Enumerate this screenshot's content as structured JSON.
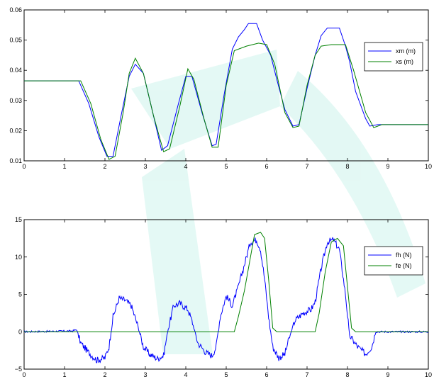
{
  "chart_data": [
    {
      "type": "line",
      "title": "",
      "xlabel": "",
      "ylabel": "",
      "xlim": [
        0,
        10
      ],
      "ylim": [
        0.01,
        0.06
      ],
      "x_ticks": [
        "0",
        "1",
        "2",
        "3",
        "4",
        "5",
        "6",
        "7",
        "8",
        "9",
        "10"
      ],
      "y_ticks": [
        "0.01",
        "0.02",
        "0.03",
        "0.04",
        "0.05",
        "0.06"
      ],
      "legend_position": "right",
      "series": [
        {
          "name": "xm (m)",
          "color": "#0000ff",
          "points": [
            [
              0,
              0.0365
            ],
            [
              1.35,
              0.0365
            ],
            [
              1.6,
              0.029
            ],
            [
              1.85,
              0.018
            ],
            [
              2.05,
              0.0115
            ],
            [
              2.2,
              0.0115
            ],
            [
              2.4,
              0.025
            ],
            [
              2.6,
              0.038
            ],
            [
              2.75,
              0.042
            ],
            [
              2.95,
              0.039
            ],
            [
              3.2,
              0.025
            ],
            [
              3.4,
              0.0135
            ],
            [
              3.55,
              0.015
            ],
            [
              3.8,
              0.028
            ],
            [
              4.0,
              0.038
            ],
            [
              4.15,
              0.038
            ],
            [
              4.4,
              0.026
            ],
            [
              4.65,
              0.015
            ],
            [
              4.75,
              0.0155
            ],
            [
              4.95,
              0.032
            ],
            [
              5.15,
              0.047
            ],
            [
              5.3,
              0.051
            ],
            [
              5.45,
              0.0535
            ],
            [
              5.55,
              0.0555
            ],
            [
              5.75,
              0.0555
            ],
            [
              5.9,
              0.05
            ],
            [
              6.1,
              0.045
            ],
            [
              6.25,
              0.037
            ],
            [
              6.45,
              0.027
            ],
            [
              6.65,
              0.0215
            ],
            [
              6.8,
              0.022
            ],
            [
              7.0,
              0.034
            ],
            [
              7.2,
              0.045
            ],
            [
              7.35,
              0.0515
            ],
            [
              7.5,
              0.054
            ],
            [
              7.8,
              0.054
            ],
            [
              7.95,
              0.048
            ],
            [
              8.05,
              0.043
            ],
            [
              8.2,
              0.033
            ],
            [
              8.45,
              0.024
            ],
            [
              8.55,
              0.0215
            ],
            [
              8.75,
              0.022
            ],
            [
              10,
              0.022
            ]
          ]
        },
        {
          "name": "xs (m)",
          "color": "#008000",
          "points": [
            [
              0,
              0.0365
            ],
            [
              1.4,
              0.0365
            ],
            [
              1.65,
              0.029
            ],
            [
              1.9,
              0.017
            ],
            [
              2.1,
              0.0105
            ],
            [
              2.25,
              0.0115
            ],
            [
              2.45,
              0.026
            ],
            [
              2.6,
              0.039
            ],
            [
              2.75,
              0.044
            ],
            [
              2.95,
              0.039
            ],
            [
              3.2,
              0.025
            ],
            [
              3.45,
              0.013
            ],
            [
              3.6,
              0.014
            ],
            [
              3.85,
              0.028
            ],
            [
              4.05,
              0.0405
            ],
            [
              4.2,
              0.037
            ],
            [
              4.45,
              0.024
            ],
            [
              4.65,
              0.0145
            ],
            [
              4.8,
              0.0145
            ],
            [
              5.0,
              0.035
            ],
            [
              5.2,
              0.0465
            ],
            [
              5.5,
              0.048
            ],
            [
              5.8,
              0.049
            ],
            [
              6.0,
              0.0485
            ],
            [
              6.2,
              0.042
            ],
            [
              6.45,
              0.026
            ],
            [
              6.65,
              0.021
            ],
            [
              6.8,
              0.0215
            ],
            [
              7.0,
              0.035
            ],
            [
              7.2,
              0.045
            ],
            [
              7.35,
              0.048
            ],
            [
              7.6,
              0.0485
            ],
            [
              7.95,
              0.0485
            ],
            [
              8.15,
              0.04
            ],
            [
              8.45,
              0.026
            ],
            [
              8.65,
              0.021
            ],
            [
              8.85,
              0.022
            ],
            [
              10,
              0.022
            ]
          ]
        }
      ]
    },
    {
      "type": "line",
      "title": "",
      "xlabel": "",
      "ylabel": "",
      "xlim": [
        0,
        10
      ],
      "ylim": [
        -5,
        15
      ],
      "x_ticks": [
        "0",
        "1",
        "2",
        "3",
        "4",
        "5",
        "6",
        "7",
        "8",
        "9",
        "10"
      ],
      "y_ticks": [
        "−5",
        "0",
        "5",
        "10",
        "15"
      ],
      "legend_position": "right",
      "series": [
        {
          "name": "fh (N)",
          "color": "#0000ff",
          "noisy": true,
          "points": [
            [
              0,
              0
            ],
            [
              1.2,
              0.1
            ],
            [
              1.3,
              0.3
            ],
            [
              1.4,
              -1.5
            ],
            [
              1.6,
              -2.8
            ],
            [
              1.8,
              -3.8
            ],
            [
              2.0,
              -3.5
            ],
            [
              2.1,
              -2.0
            ],
            [
              2.2,
              2.0
            ],
            [
              2.35,
              4.5
            ],
            [
              2.5,
              4.2
            ],
            [
              2.65,
              3.5
            ],
            [
              2.8,
              1.0
            ],
            [
              2.95,
              -2.0
            ],
            [
              3.1,
              -3.0
            ],
            [
              3.3,
              -3.6
            ],
            [
              3.45,
              -3.2
            ],
            [
              3.55,
              0.0
            ],
            [
              3.7,
              3.5
            ],
            [
              3.85,
              3.8
            ],
            [
              4.05,
              3.0
            ],
            [
              4.15,
              1.5
            ],
            [
              4.3,
              -1.5
            ],
            [
              4.5,
              -2.8
            ],
            [
              4.65,
              -3.2
            ],
            [
              4.75,
              -2.0
            ],
            [
              4.85,
              2.0
            ],
            [
              5.0,
              4.8
            ],
            [
              5.15,
              3.5
            ],
            [
              5.3,
              6.0
            ],
            [
              5.45,
              9.0
            ],
            [
              5.6,
              12.0
            ],
            [
              5.75,
              12.3
            ],
            [
              5.85,
              11.0
            ],
            [
              5.95,
              7.0
            ],
            [
              6.05,
              2.0
            ],
            [
              6.15,
              -2.0
            ],
            [
              6.3,
              -3.5
            ],
            [
              6.45,
              -3.0
            ],
            [
              6.55,
              -1.0
            ],
            [
              6.7,
              1.5
            ],
            [
              6.9,
              2.5
            ],
            [
              7.1,
              3.0
            ],
            [
              7.2,
              4.0
            ],
            [
              7.35,
              8.5
            ],
            [
              7.5,
              12.0
            ],
            [
              7.65,
              12.3
            ],
            [
              7.8,
              11.0
            ],
            [
              7.95,
              5.0
            ],
            [
              8.05,
              -0.5
            ],
            [
              8.25,
              -2.0
            ],
            [
              8.45,
              -3.0
            ],
            [
              8.6,
              -2.0
            ],
            [
              8.7,
              0.0
            ],
            [
              10,
              0
            ]
          ]
        },
        {
          "name": "fe (N)",
          "color": "#008000",
          "noisy": false,
          "points": [
            [
              0,
              0
            ],
            [
              5.2,
              0
            ],
            [
              5.3,
              2.0
            ],
            [
              5.45,
              5.5
            ],
            [
              5.6,
              10.0
            ],
            [
              5.7,
              13.0
            ],
            [
              5.85,
              13.3
            ],
            [
              5.95,
              12.5
            ],
            [
              6.05,
              7.0
            ],
            [
              6.15,
              0.5
            ],
            [
              6.25,
              0
            ],
            [
              7.2,
              0
            ],
            [
              7.3,
              2.5
            ],
            [
              7.45,
              8.0
            ],
            [
              7.6,
              12.0
            ],
            [
              7.75,
              12.5
            ],
            [
              7.9,
              11.5
            ],
            [
              8.0,
              6.0
            ],
            [
              8.1,
              0.5
            ],
            [
              8.2,
              0
            ],
            [
              10,
              0
            ]
          ]
        }
      ]
    }
  ]
}
